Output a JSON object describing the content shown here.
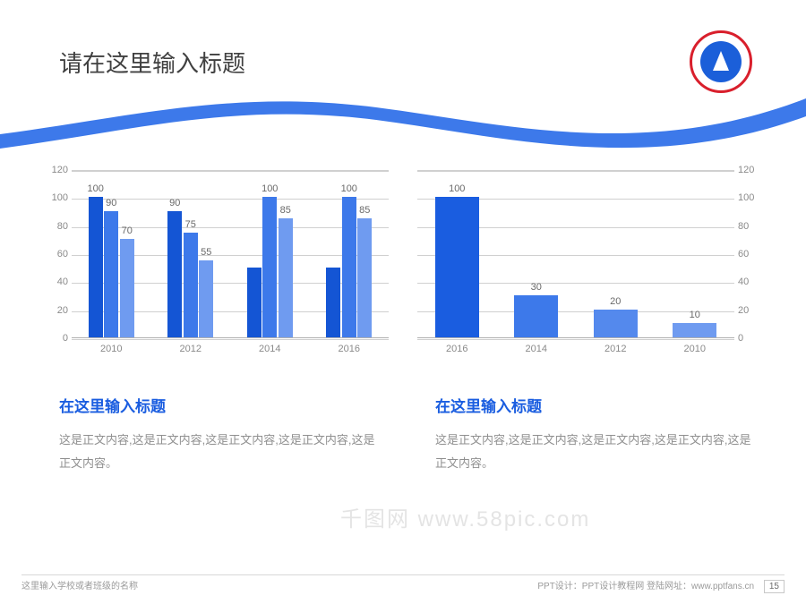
{
  "title": "请在这里输入标题",
  "chart_left": {
    "type": "bar",
    "ylim": [
      0,
      120
    ],
    "ytick_step": 20,
    "categories": [
      "2010",
      "2012",
      "2014",
      "2016"
    ],
    "series": [
      {
        "color": "#1455d4",
        "values": [
          100,
          90,
          50,
          50
        ],
        "labels": [
          "100",
          "90",
          "",
          ""
        ]
      },
      {
        "color": "#3d79ea",
        "values": [
          90,
          75,
          100,
          100
        ],
        "labels": [
          "90",
          "75",
          "100",
          "100"
        ]
      },
      {
        "color": "#6f9bf0",
        "values": [
          70,
          55,
          85,
          85
        ],
        "labels": [
          "70",
          "55",
          "85",
          "85"
        ]
      }
    ],
    "axis_color": "#8a8a8a",
    "grid_color": "#d0d0d0",
    "label_fontsize": 11
  },
  "chart_right": {
    "type": "bar",
    "ylim": [
      0,
      120
    ],
    "ytick_step": 20,
    "categories": [
      "2016",
      "2014",
      "2012",
      "2010"
    ],
    "values": [
      100,
      30,
      20,
      10
    ],
    "labels": [
      "100",
      "30",
      "20",
      "10"
    ],
    "colors": [
      "#1a5de0",
      "#3d79ea",
      "#5489ed",
      "#6f9bf0"
    ],
    "axis_color": "#8a8a8a",
    "grid_color": "#d0d0d0",
    "label_fontsize": 11
  },
  "text_blocks": [
    {
      "title": "在这里输入标题",
      "title_color": "#1a5de0",
      "body": "这是正文内容,这是正文内容,这是正文内容,这是正文内容,这是正文内容。"
    },
    {
      "title": "在这里输入标题",
      "title_color": "#1a5de0",
      "body": "这是正文内容,这是正文内容,这是正文内容,这是正文内容,这是正文内容。"
    }
  ],
  "footer": {
    "left": "这里输入学校或者班级的名称",
    "right_prefix": "PPT设计：PPT设计教程网    登陆网址：",
    "url": "www.pptfans.cn",
    "page": "15"
  },
  "logo": {
    "outer_ring": "#d91f2c",
    "inner": "#1b5fd9"
  },
  "swoosh_color": "#3d79ea",
  "watermark": "千图网 www.58pic.com"
}
